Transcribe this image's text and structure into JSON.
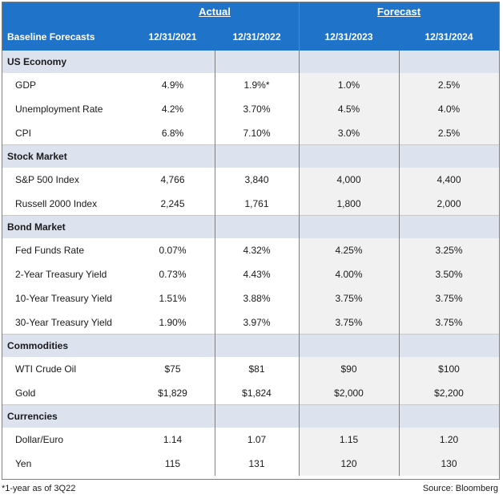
{
  "header": {
    "group_actual": "Actual",
    "group_forecast": "Forecast",
    "title": "Baseline Forecasts",
    "cols": [
      "12/31/2021",
      "12/31/2022",
      "12/31/2023",
      "12/31/2024"
    ]
  },
  "sections": [
    {
      "name": "US Economy",
      "rows": [
        {
          "label": "GDP",
          "values": [
            "4.9%",
            "1.9%*",
            "1.0%",
            "2.5%"
          ]
        },
        {
          "label": "Unemployment Rate",
          "values": [
            "4.2%",
            "3.70%",
            "4.5%",
            "4.0%"
          ]
        },
        {
          "label": "CPI",
          "values": [
            "6.8%",
            "7.10%",
            "3.0%",
            "2.5%"
          ]
        }
      ]
    },
    {
      "name": "Stock Market",
      "rows": [
        {
          "label": "S&P 500 Index",
          "values": [
            "4,766",
            "3,840",
            "4,000",
            "4,400"
          ]
        },
        {
          "label": "Russell 2000 Index",
          "values": [
            "2,245",
            "1,761",
            "1,800",
            "2,000"
          ]
        }
      ]
    },
    {
      "name": "Bond Market",
      "rows": [
        {
          "label": "Fed Funds Rate",
          "values": [
            "0.07%",
            "4.32%",
            "4.25%",
            "3.25%"
          ]
        },
        {
          "label": "2-Year Treasury Yield",
          "values": [
            "0.73%",
            "4.43%",
            "4.00%",
            "3.50%"
          ]
        },
        {
          "label": "10-Year Treasury Yield",
          "values": [
            "1.51%",
            "3.88%",
            "3.75%",
            "3.75%"
          ]
        },
        {
          "label": "30-Year Treasury Yield",
          "values": [
            "1.90%",
            "3.97%",
            "3.75%",
            "3.75%"
          ]
        }
      ]
    },
    {
      "name": "Commodities",
      "rows": [
        {
          "label": "WTI Crude Oil",
          "values": [
            "$75",
            "$81",
            "$90",
            "$100"
          ]
        },
        {
          "label": "Gold",
          "values": [
            "$1,829",
            "$1,824",
            "$2,000",
            "$2,200"
          ]
        }
      ]
    },
    {
      "name": "Currencies",
      "rows": [
        {
          "label": "Dollar/Euro",
          "values": [
            "1.14",
            "1.07",
            "1.15",
            "1.20"
          ]
        },
        {
          "label": "Yen",
          "values": [
            "115",
            "131",
            "120",
            "130"
          ]
        }
      ]
    }
  ],
  "footer": {
    "note": "*1-year as of 3Q22",
    "source": "Source: Bloomberg"
  },
  "colors": {
    "header_blue": "#1f73c9",
    "section_band": "#dde3ee",
    "forecast_shade": "#f1f1f1"
  }
}
